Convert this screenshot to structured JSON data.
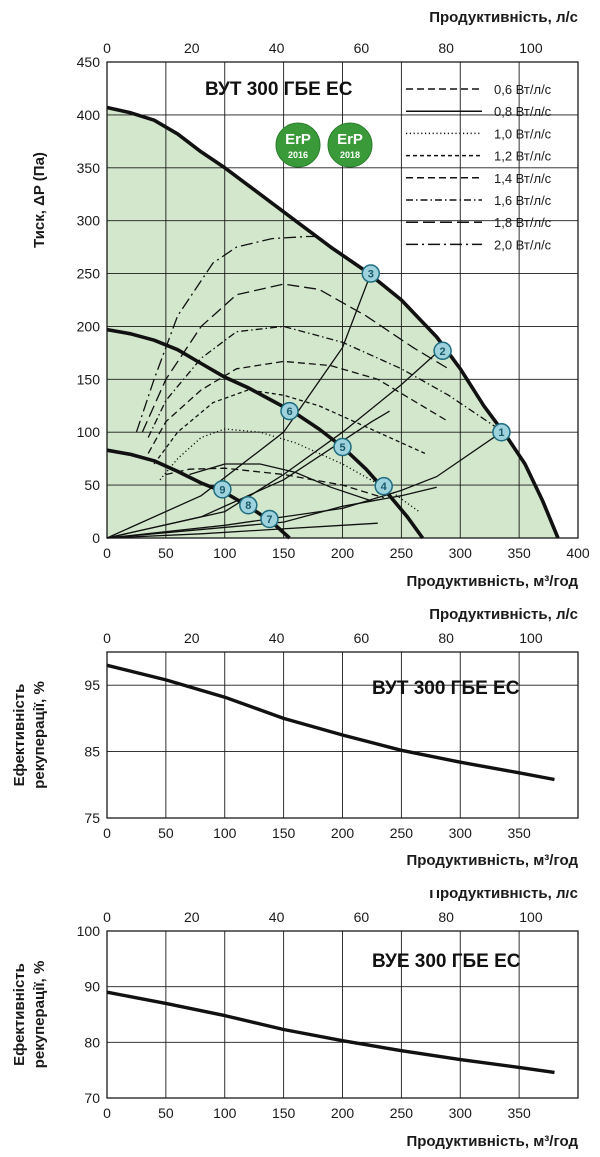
{
  "colors": {
    "fill_area": "#d2e7cc",
    "grid": "#1a1a1a",
    "curve": "#111111",
    "badge_fill": "#9ed2dd",
    "badge_stroke": "#1f6d80",
    "erp_green": "#3a9a3a"
  },
  "erp_logos": [
    {
      "text": "ErP",
      "year": "2016"
    },
    {
      "text": "ErP",
      "year": "2018"
    }
  ],
  "chart_data": [
    {
      "type": "line",
      "title": "ВУТ 300 ГБЕ ЕС",
      "xlabel": "Продуктивність, м³/год",
      "x2label": "Продуктивність, л/с",
      "ylabel": "Тиск, ΔP (Па)",
      "xlim": [
        0,
        400
      ],
      "ylim": [
        0,
        450
      ],
      "x2lim": [
        0,
        111.1
      ],
      "xticks": [
        "0",
        "50",
        "100",
        "150",
        "200",
        "250",
        "300",
        "350",
        "400"
      ],
      "x2ticks": [
        "0",
        "20",
        "40",
        "60",
        "80",
        "100"
      ],
      "yticks": [
        "0",
        "50",
        "100",
        "150",
        "200",
        "250",
        "300",
        "350",
        "400",
        "450"
      ],
      "fan_curves": [
        {
          "x": [
            0,
            20,
            40,
            60,
            80,
            100,
            130,
            160,
            190,
            220,
            250,
            280,
            300,
            320,
            340,
            355,
            370,
            383
          ],
          "y": [
            407,
            402,
            395,
            382,
            365,
            350,
            325,
            300,
            275,
            252,
            225,
            190,
            160,
            125,
            95,
            70,
            35,
            0
          ]
        },
        {
          "x": [
            0,
            20,
            40,
            60,
            80,
            100,
            120,
            140,
            160,
            180,
            200,
            220,
            240,
            255,
            268
          ],
          "y": [
            197,
            193,
            187,
            178,
            165,
            152,
            142,
            130,
            118,
            103,
            86,
            65,
            40,
            20,
            0
          ]
        },
        {
          "x": [
            0,
            20,
            40,
            60,
            80,
            100,
            120,
            140,
            155
          ],
          "y": [
            83,
            79,
            73,
            63,
            52,
            43,
            30,
            15,
            0
          ]
        }
      ],
      "system_curves": [
        {
          "x": [
            0,
            80,
            150,
            225,
            240
          ],
          "y": [
            0,
            20,
            55,
            110,
            120
          ]
        },
        {
          "x": [
            0,
            100,
            150,
            200,
            250,
            285
          ],
          "y": [
            0,
            25,
            60,
            100,
            145,
            180
          ]
        },
        {
          "x": [
            0,
            80,
            150,
            200,
            224
          ],
          "y": [
            0,
            40,
            100,
            180,
            250
          ]
        },
        {
          "x": [
            0,
            100,
            200,
            250,
            280,
            335
          ],
          "y": [
            0,
            12,
            28,
            45,
            58,
            100
          ]
        },
        {
          "x": [
            0,
            150,
            200,
            250,
            280
          ],
          "y": [
            0,
            15,
            30,
            40,
            48
          ]
        },
        {
          "x": [
            0,
            80,
            140,
            200,
            230
          ],
          "y": [
            0,
            4,
            8,
            12,
            14
          ]
        }
      ],
      "power_curves": [
        {
          "name": "0,6 Вт/л/с",
          "style": "dash-med",
          "x": [
            50,
            70,
            100,
            150,
            200,
            235
          ],
          "y": [
            60,
            65,
            66,
            60,
            50,
            38
          ]
        },
        {
          "name": "0,8 Вт/л/с",
          "style": "solid",
          "x": [
            70,
            100,
            130,
            160,
            190,
            225
          ],
          "y": [
            60,
            70,
            70,
            62,
            48,
            35
          ]
        },
        {
          "name": "1,0 Вт/л/с",
          "style": "dotted",
          "x": [
            45,
            60,
            80,
            100,
            130,
            160,
            200,
            240,
            265
          ],
          "y": [
            55,
            75,
            95,
            103,
            100,
            90,
            70,
            45,
            25
          ]
        },
        {
          "name": "1,2 Вт/л/с",
          "style": "dash-short",
          "x": [
            40,
            60,
            90,
            120,
            150,
            180,
            210,
            240,
            270
          ],
          "y": [
            70,
            100,
            128,
            140,
            135,
            125,
            110,
            95,
            80
          ]
        },
        {
          "name": "1,4 Вт/л/с",
          "style": "dash-med",
          "x": [
            35,
            50,
            80,
            110,
            150,
            190,
            230,
            260,
            290
          ],
          "y": [
            80,
            110,
            140,
            160,
            167,
            163,
            150,
            130,
            110
          ]
        },
        {
          "name": "1,6 Вт/л/с",
          "style": "dash-dot",
          "x": [
            35,
            50,
            80,
            110,
            150,
            200,
            250,
            290,
            330
          ],
          "y": [
            95,
            130,
            170,
            195,
            200,
            185,
            160,
            135,
            105
          ]
        },
        {
          "name": "1,8 Вт/л/с",
          "style": "dash-long",
          "x": [
            30,
            50,
            80,
            110,
            150,
            180,
            220,
            260,
            290
          ],
          "y": [
            100,
            150,
            200,
            230,
            240,
            235,
            210,
            180,
            160
          ]
        },
        {
          "name": "2,0 Вт/л/с",
          "style": "dash-dot-long",
          "x": [
            25,
            40,
            60,
            90,
            110,
            140,
            170,
            180
          ],
          "y": [
            100,
            150,
            210,
            260,
            275,
            283,
            285,
            285
          ]
        }
      ],
      "markers": [
        {
          "label": "1",
          "x": 335,
          "y": 100
        },
        {
          "label": "2",
          "x": 285,
          "y": 177
        },
        {
          "label": "3",
          "x": 224,
          "y": 250
        },
        {
          "label": "4",
          "x": 235,
          "y": 49
        },
        {
          "label": "5",
          "x": 200,
          "y": 86
        },
        {
          "label": "6",
          "x": 155,
          "y": 120
        },
        {
          "label": "7",
          "x": 138,
          "y": 18
        },
        {
          "label": "8",
          "x": 120,
          "y": 31
        },
        {
          "label": "9",
          "x": 98,
          "y": 46
        }
      ]
    },
    {
      "type": "line",
      "title": "ВУТ 300 ГБЕ ЕС",
      "xlabel": "Продуктивність, м³/год",
      "x2label": "Продуктивність, л/с",
      "ylabel": "Ефективність рекуперації, %",
      "xlim": [
        0,
        400
      ],
      "ylim": [
        75,
        100
      ],
      "x2lim": [
        0,
        111.1
      ],
      "xticks": [
        "0",
        "50",
        "100",
        "150",
        "200",
        "250",
        "300",
        "350"
      ],
      "x2ticks": [
        "0",
        "20",
        "40",
        "60",
        "80",
        "100"
      ],
      "yticks": [
        "75",
        "85",
        "95"
      ],
      "series": [
        {
          "x": [
            0,
            50,
            100,
            150,
            200,
            250,
            300,
            350,
            380
          ],
          "y": [
            98,
            95.8,
            93.2,
            90,
            87.5,
            85.2,
            83.4,
            81.8,
            80.8
          ]
        }
      ]
    },
    {
      "type": "line",
      "title": "ВУЕ 300 ГБЕ ЕС",
      "xlabel": "Продуктивність, м³/год",
      "x2label": "Продуктивність, л/с",
      "ylabel": "Ефективність рекуперації, %",
      "xlim": [
        0,
        400
      ],
      "ylim": [
        70,
        100
      ],
      "x2lim": [
        0,
        111.1
      ],
      "xticks": [
        "0",
        "50",
        "100",
        "150",
        "200",
        "250",
        "300",
        "350"
      ],
      "x2ticks": [
        "0",
        "20",
        "40",
        "60",
        "80",
        "100"
      ],
      "yticks": [
        "70",
        "80",
        "90",
        "100"
      ],
      "series": [
        {
          "x": [
            0,
            50,
            100,
            150,
            200,
            250,
            300,
            350,
            380
          ],
          "y": [
            89,
            87,
            84.8,
            82.3,
            80.3,
            78.5,
            76.9,
            75.5,
            74.6
          ]
        }
      ]
    }
  ]
}
